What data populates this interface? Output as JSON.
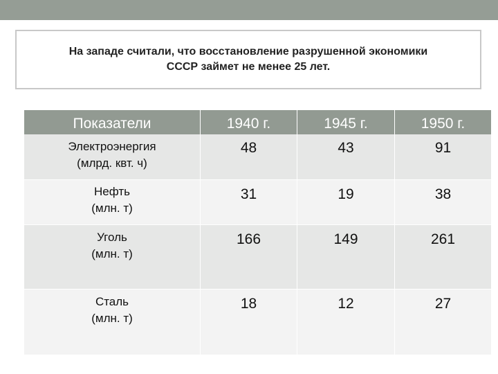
{
  "title": {
    "line1": "На западе считали, что восстановление разрушенной экономики",
    "line2": "СССР займет не менее 25 лет."
  },
  "table": {
    "headers": [
      "Показатели",
      "1940 г.",
      "1945 г.",
      "1950 г."
    ],
    "rows": [
      {
        "label1": "Электроэнергия",
        "label2": "(млрд. квт. ч)",
        "values": [
          "48",
          "43",
          "91"
        ]
      },
      {
        "label1": "Нефть",
        "label2": "(млн. т)",
        "values": [
          "31",
          "19",
          "38"
        ]
      },
      {
        "label1": "Уголь",
        "label2": "(млн. т)",
        "values": [
          "166",
          "149",
          "261"
        ]
      },
      {
        "label1": "Сталь",
        "label2": "(млн. т)",
        "values": [
          "18",
          "12",
          "27"
        ]
      }
    ]
  },
  "colors": {
    "header_bg": "#929a92",
    "top_bar": "#959d95",
    "row_dark": "#e6e7e6",
    "row_light": "#f3f3f3"
  }
}
